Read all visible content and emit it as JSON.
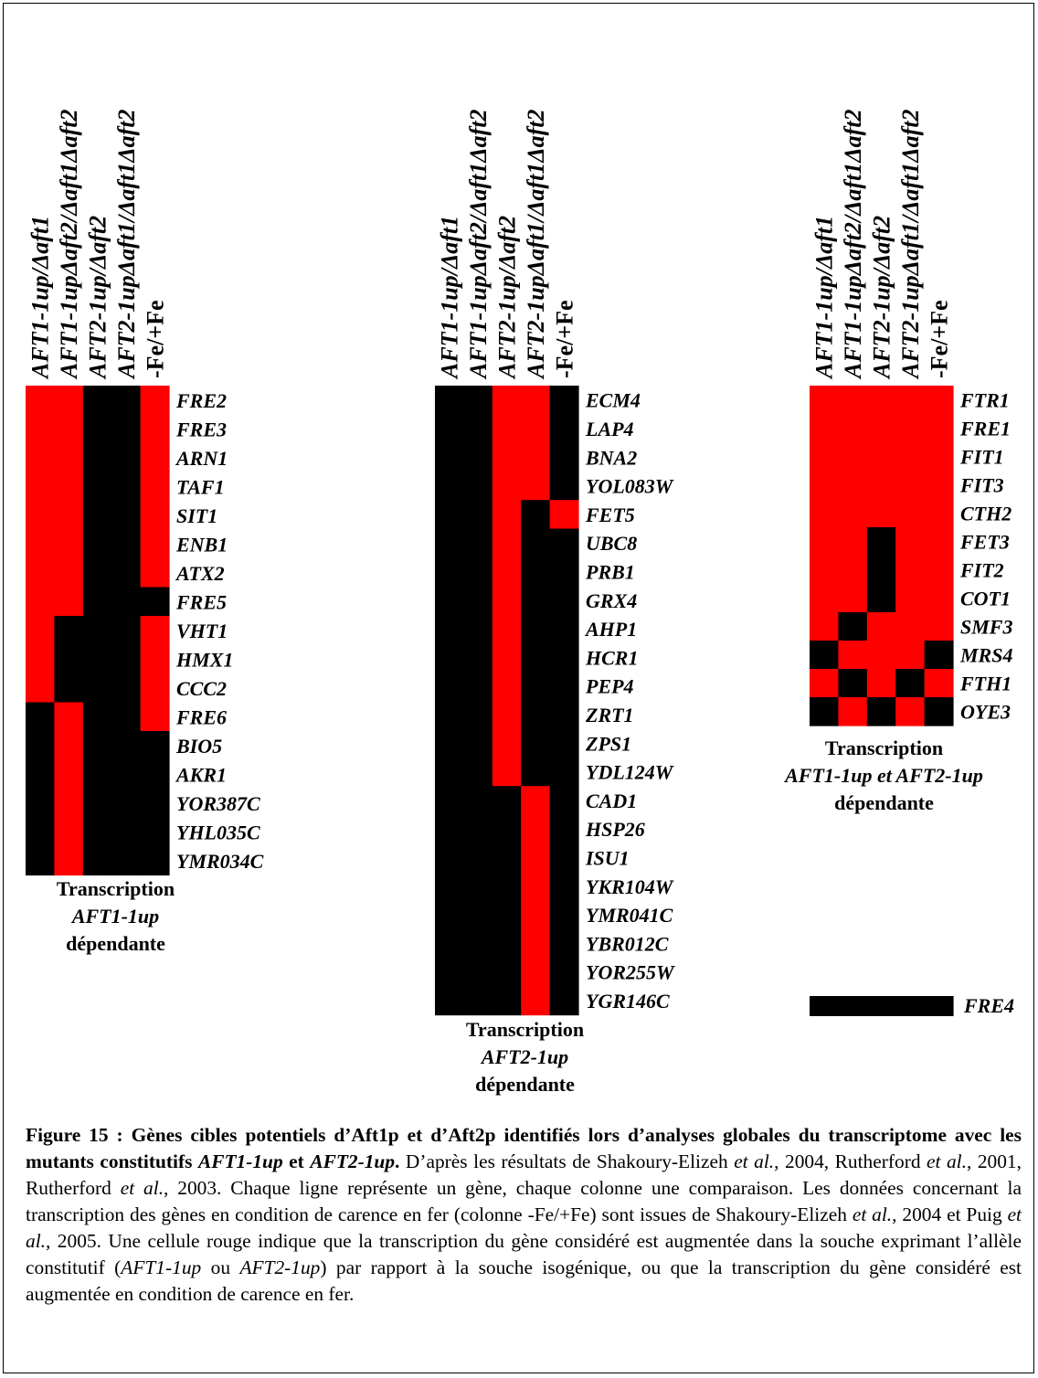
{
  "colors": {
    "up": "#ff0000",
    "not_up": "#000000"
  },
  "chart_data": [
    {
      "type": "heatmap",
      "columns": [
        "AFT1-1up/Δaft1",
        "AFT1-1upΔaft2/Δaft1Δaft2",
        "AFT2-1up/Δaft2",
        "AFT2-1upΔaft1/Δaft1Δaft2",
        "-Fe/+Fe"
      ],
      "rows": [
        "FRE2",
        "FRE3",
        "ARN1",
        "TAF1",
        "SIT1",
        "ENB1",
        "ATX2",
        "FRE5",
        "VHT1",
        "HMX1",
        "CCC2",
        "FRE6",
        "BIO5",
        "AKR1",
        "YOR387C",
        "YHL035C",
        "YMR034C"
      ],
      "values": [
        [
          1,
          1,
          0,
          0,
          1
        ],
        [
          1,
          1,
          0,
          0,
          1
        ],
        [
          1,
          1,
          0,
          0,
          1
        ],
        [
          1,
          1,
          0,
          0,
          1
        ],
        [
          1,
          1,
          0,
          0,
          1
        ],
        [
          1,
          1,
          0,
          0,
          1
        ],
        [
          1,
          1,
          0,
          0,
          1
        ],
        [
          1,
          1,
          0,
          0,
          0
        ],
        [
          1,
          0,
          0,
          0,
          1
        ],
        [
          1,
          0,
          0,
          0,
          1
        ],
        [
          1,
          0,
          0,
          0,
          1
        ],
        [
          0,
          1,
          0,
          0,
          1
        ],
        [
          0,
          1,
          0,
          0,
          0
        ],
        [
          0,
          1,
          0,
          0,
          0
        ],
        [
          0,
          1,
          0,
          0,
          0
        ],
        [
          0,
          1,
          0,
          0,
          0
        ],
        [
          0,
          1,
          0,
          0,
          0
        ]
      ],
      "caption": [
        "Transcription",
        "AFT1-1up",
        "dépendante"
      ]
    },
    {
      "type": "heatmap",
      "columns": [
        "AFT1-1up/Δaft1",
        "AFT1-1upΔaft2/Δaft1Δaft2",
        "AFT2-1up/Δaft2",
        "AFT2-1upΔaft1/Δaft1Δaft2",
        "-Fe/+Fe"
      ],
      "rows": [
        "ECM4",
        "LAP4",
        "BNA2",
        "YOL083W",
        "FET5",
        "UBC8",
        "PRB1",
        "GRX4",
        "AHP1",
        "HCR1",
        "PEP4",
        "ZRT1",
        "ZPS1",
        "YDL124W",
        "CAD1",
        "HSP26",
        "ISU1",
        "YKR104W",
        "YMR041C",
        "YBR012C",
        "YOR255W",
        "YGR146C"
      ],
      "values": [
        [
          0,
          0,
          1,
          1,
          0
        ],
        [
          0,
          0,
          1,
          1,
          0
        ],
        [
          0,
          0,
          1,
          1,
          0
        ],
        [
          0,
          0,
          1,
          1,
          0
        ],
        [
          0,
          0,
          1,
          0,
          1
        ],
        [
          0,
          0,
          1,
          0,
          0
        ],
        [
          0,
          0,
          1,
          0,
          0
        ],
        [
          0,
          0,
          1,
          0,
          0
        ],
        [
          0,
          0,
          1,
          0,
          0
        ],
        [
          0,
          0,
          1,
          0,
          0
        ],
        [
          0,
          0,
          1,
          0,
          0
        ],
        [
          0,
          0,
          1,
          0,
          0
        ],
        [
          0,
          0,
          1,
          0,
          0
        ],
        [
          0,
          0,
          1,
          0,
          0
        ],
        [
          0,
          0,
          0,
          1,
          0
        ],
        [
          0,
          0,
          0,
          1,
          0
        ],
        [
          0,
          0,
          0,
          1,
          0
        ],
        [
          0,
          0,
          0,
          1,
          0
        ],
        [
          0,
          0,
          0,
          1,
          0
        ],
        [
          0,
          0,
          0,
          1,
          0
        ],
        [
          0,
          0,
          0,
          1,
          0
        ],
        [
          0,
          0,
          0,
          1,
          0
        ]
      ],
      "caption": [
        "Transcription",
        "AFT2-1up",
        "dépendante"
      ]
    },
    {
      "type": "heatmap",
      "columns": [
        "AFT1-1up/Δaft1",
        "AFT1-1upΔaft2/Δaft1Δaft2",
        "AFT2-1up/Δaft2",
        "AFT2-1upΔaft1/Δaft1Δaft2",
        "-Fe/+Fe"
      ],
      "rows": [
        "FTR1",
        "FRE1",
        "FIT1",
        "FIT3",
        "CTH2",
        "FET3",
        "FIT2",
        "COT1",
        "SMF3",
        "MRS4",
        "FTH1",
        "OYE3"
      ],
      "values": [
        [
          1,
          1,
          1,
          1,
          1
        ],
        [
          1,
          1,
          1,
          1,
          1
        ],
        [
          1,
          1,
          1,
          1,
          1
        ],
        [
          1,
          1,
          1,
          1,
          1
        ],
        [
          1,
          1,
          1,
          1,
          1
        ],
        [
          1,
          1,
          0,
          1,
          1
        ],
        [
          1,
          1,
          0,
          1,
          1
        ],
        [
          1,
          1,
          0,
          1,
          1
        ],
        [
          1,
          0,
          1,
          1,
          1
        ],
        [
          0,
          1,
          1,
          1,
          0
        ],
        [
          1,
          0,
          1,
          0,
          1
        ],
        [
          0,
          1,
          0,
          1,
          0
        ]
      ],
      "caption": [
        "Transcription",
        "AFT1-1up et AFT2-1up",
        "dépendante"
      ],
      "extra_row": {
        "label": "FRE4",
        "values": [
          0,
          0,
          0,
          0,
          0
        ]
      }
    }
  ],
  "figure_caption": {
    "label": "Figure 15 :",
    "title_a": " Gènes cibles potentiels d’Aft1p et d’Aft2p identifiés lors d’analyses globales du transcriptome avec les mutants constitutifs ",
    "title_i1": "AFT1-1up",
    "title_b": " et ",
    "title_i2": "AFT2-1up",
    "title_end": ".",
    "s1": " D’après les résultats de Shakoury-Elizeh ",
    "etal": "et al.",
    "s2": ", 2004, Rutherford ",
    "s3": ", 2001, Rutherford ",
    "s4": ", 2003. Chaque ligne représente un gène, chaque colonne une comparaison. Les données concernant la transcription des gènes en condition de carence en fer (colonne -Fe/+Fe) sont issues de Shakoury-Elizeh ",
    "s5": ", 2004 et Puig ",
    "s6": ", 2005. Une cellule rouge indique que la transcription du gène considéré est augmentée dans la souche exprimant l’allèle constitutif (",
    "allele1": "AFT1-1up",
    "ou": " ou ",
    "allele2": "AFT2-1up",
    "s7": ") par rapport à la souche isogénique, ou que la transcription du gène considéré est augmentée en condition de carence en fer."
  }
}
